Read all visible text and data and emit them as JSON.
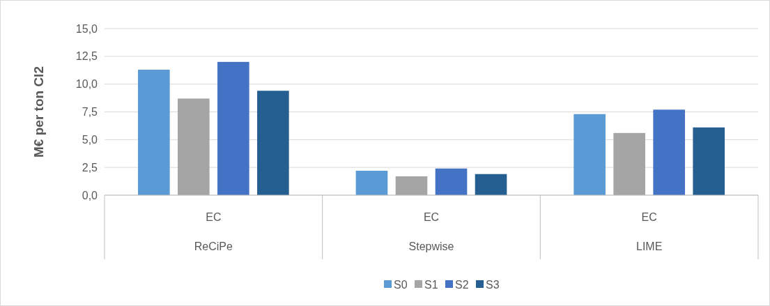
{
  "chart_data": {
    "type": "bar",
    "ylabel": "M€ per ton Cl2",
    "categories": [
      "EC",
      "EC",
      "EC"
    ],
    "annotations": [
      "ReCiPe",
      "Stepwise",
      "LIME"
    ],
    "series": [
      {
        "name": "S0",
        "color": "#5b9bd5",
        "values": [
          11.3,
          2.2,
          7.3
        ]
      },
      {
        "name": "S1",
        "color": "#a5a5a5",
        "values": [
          8.7,
          1.7,
          5.6
        ]
      },
      {
        "name": "S2",
        "color": "#4472c4",
        "values": [
          12.0,
          2.4,
          7.7
        ]
      },
      {
        "name": "S3",
        "color": "#255e91",
        "values": [
          9.4,
          1.9,
          6.1
        ]
      }
    ],
    "ylim": [
      0,
      15
    ],
    "yticks": [
      {
        "value": 0,
        "label": "0,0"
      },
      {
        "value": 2.5,
        "label": "2,5"
      },
      {
        "value": 5,
        "label": "5,0"
      },
      {
        "value": 7.5,
        "label": "7,5"
      },
      {
        "value": 10,
        "label": "10,0"
      },
      {
        "value": 12.5,
        "label": "12,5"
      },
      {
        "value": 15,
        "label": "15,0"
      }
    ],
    "grid": "y",
    "legend": "bottom"
  }
}
